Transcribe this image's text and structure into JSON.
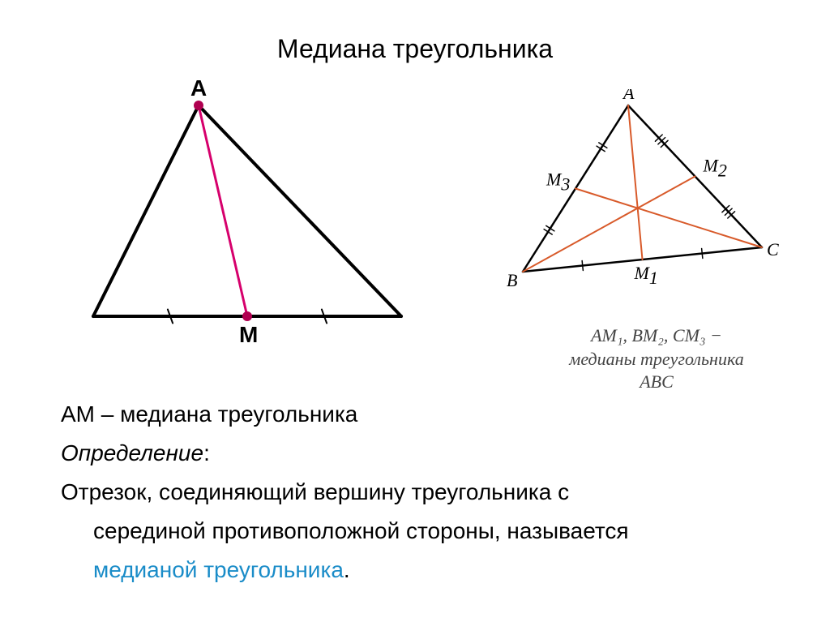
{
  "title": "Медиана треугольника",
  "left_fig": {
    "label_A": "A",
    "label_M": "M",
    "stroke_color": "#000000",
    "median_color": "#d6006c",
    "vertex_dot_color": "#b00050",
    "triangle": {
      "A": [
        170,
        40
      ],
      "B": [
        40,
        300
      ],
      "C": [
        420,
        300
      ]
    },
    "M": [
      230,
      300
    ],
    "stroke_width": 4,
    "median_width": 3,
    "dot_radius": 6,
    "tick_color": "#000000"
  },
  "right_fig": {
    "label_A": "A",
    "label_B": "B",
    "label_C": "C",
    "label_M1": "M",
    "label_M1_sub": "1",
    "label_M2": "M",
    "label_M2_sub": "2",
    "label_M3": "M",
    "label_M3_sub": "3",
    "stroke_color": "#000000",
    "median_color": "#d85a2a",
    "triangle": {
      "A": [
        155,
        20
      ],
      "B": [
        25,
        225
      ],
      "C": [
        320,
        195
      ]
    },
    "M1": [
      172.5,
      210
    ],
    "M2": [
      237.5,
      107.5
    ],
    "M3": [
      90,
      122.5
    ],
    "stroke_width": 2.5,
    "median_width": 2
  },
  "right_caption_line1": "AM₁, BM₂, CM₃ −",
  "right_caption_line2": "медианы треугольника",
  "right_caption_line3": "ABC",
  "body": {
    "line1": "AM – медиана треугольника",
    "line2_label": "Определение",
    "line2_colon": ":",
    "line3": "Отрезок, соединяющий вершину треугольника с",
    "line4": "серединой противоположной стороны, называется",
    "line5": "медианой треугольника",
    "line5_dot": ".",
    "highlight_color": "#1a8cc8"
  }
}
